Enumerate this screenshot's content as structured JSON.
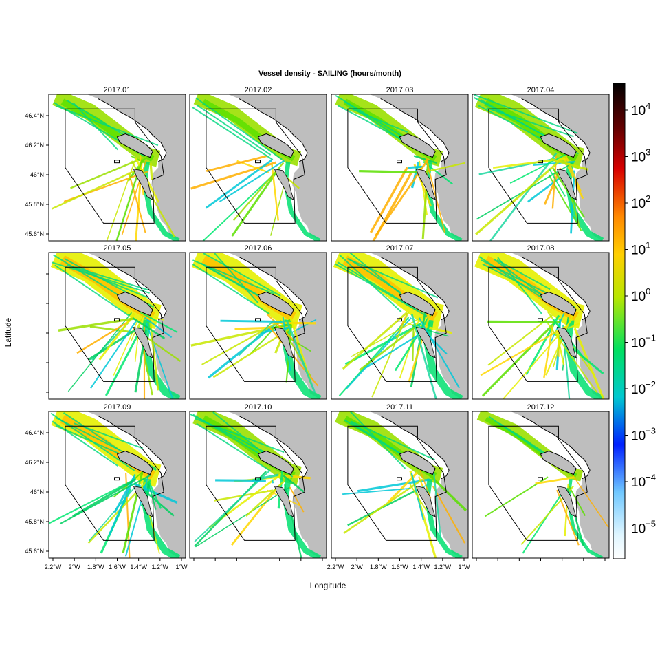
{
  "chart_data": {
    "type": "heatmap",
    "title": "Vessel density - SAILING (hours/month)",
    "xlabel": "Longitude",
    "ylabel": "Latitude",
    "panels": [
      "2017.01",
      "2017.02",
      "2017.03",
      "2017.04",
      "2017.05",
      "2017.06",
      "2017.07",
      "2017.08",
      "2017.09",
      "2017.10",
      "2017.11",
      "2017.12"
    ],
    "x_ticks": [
      "2.2°W",
      "2°W",
      "1.8°W",
      "1.6°W",
      "1.4°W",
      "1.2°W",
      "1°W"
    ],
    "y_ticks": [
      "46.4°N",
      "46.2°N",
      "46°N",
      "45.8°N",
      "45.6°N"
    ],
    "xlim": [
      -2.25,
      -0.95
    ],
    "ylim": [
      45.55,
      46.55
    ],
    "colorbar": {
      "scale": "log",
      "ticks": [
        {
          "base": "10",
          "exp": "4"
        },
        {
          "base": "10",
          "exp": "3"
        },
        {
          "base": "10",
          "exp": "2"
        },
        {
          "base": "10",
          "exp": "1"
        },
        {
          "base": "10",
          "exp": "0"
        },
        {
          "base": "10",
          "exp": "−1"
        },
        {
          "base": "10",
          "exp": "−2"
        },
        {
          "base": "10",
          "exp": "−3"
        },
        {
          "base": "10",
          "exp": "−4"
        },
        {
          "base": "10",
          "exp": "−5"
        }
      ],
      "colors": [
        "#000000",
        "#c00000",
        "#ff8c00",
        "#ffd700",
        "#9bdc00",
        "#00e070",
        "#00c8d8",
        "#0030ff",
        "#b8e8ff",
        "#ffffff"
      ]
    },
    "land_color": "#bebebe"
  }
}
